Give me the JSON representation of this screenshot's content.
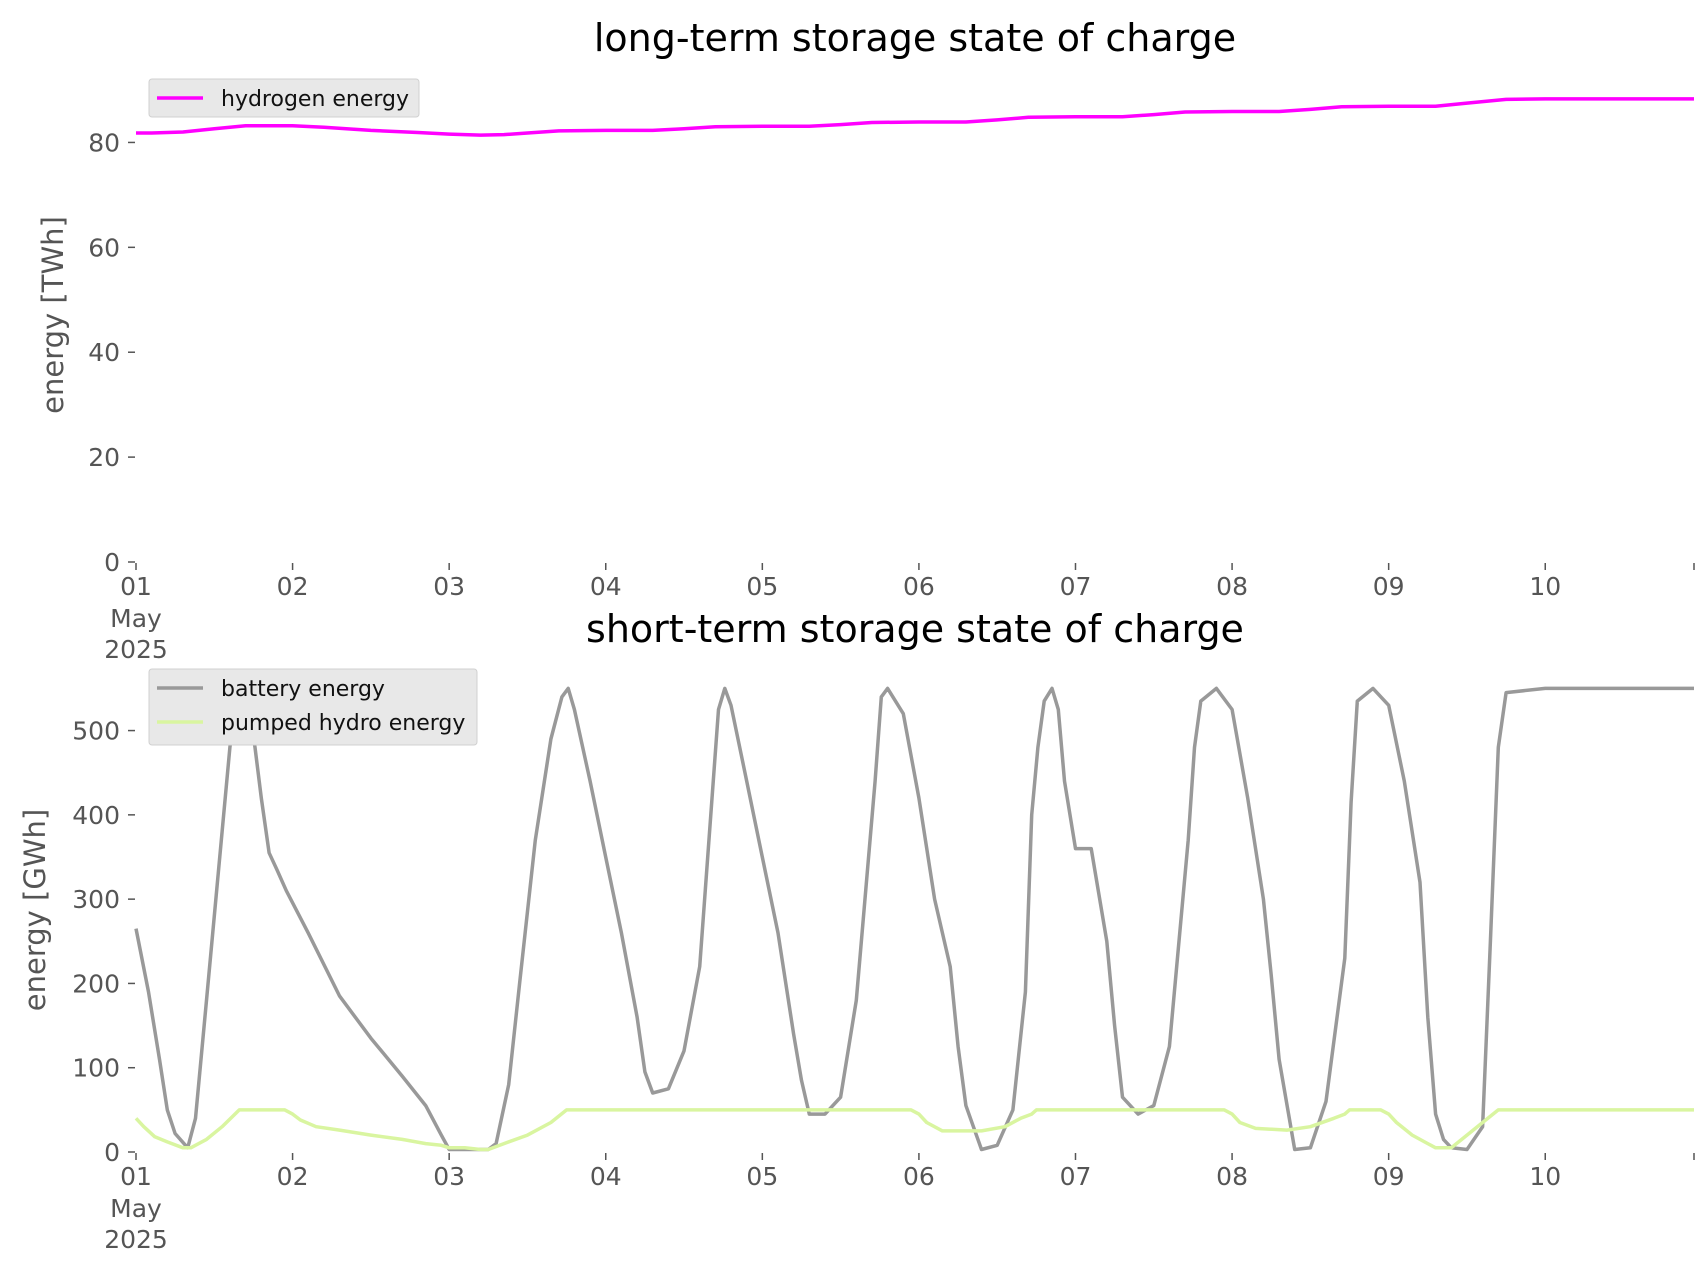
{
  "colors": {
    "hydrogen": "#ff00ff",
    "battery": "#999999",
    "pumped_hydro": "#d9f5a0",
    "legend_bg": "#e8e8e8",
    "tick_text": "#555555"
  },
  "x_ticks": {
    "labels": [
      "01",
      "02",
      "03",
      "04",
      "05",
      "06",
      "07",
      "08",
      "09",
      "10"
    ],
    "month_label": "May",
    "year_label": "2025"
  },
  "chart_data": [
    {
      "type": "line",
      "title": "long-term storage state of charge",
      "ylabel": "energy [TWh]",
      "xlabel": "",
      "x_unit": "day of May 2025",
      "xlim": [
        1,
        10.95
      ],
      "ylim": [
        0,
        90
      ],
      "yticks": [
        0,
        20,
        40,
        60,
        80
      ],
      "grid": false,
      "legend_position": "top-left",
      "series": [
        {
          "name": "hydrogen energy",
          "color": "#ff00ff",
          "x": [
            1.0,
            1.1,
            1.3,
            1.5,
            1.7,
            2.0,
            2.2,
            2.5,
            2.8,
            3.0,
            3.2,
            3.35,
            3.5,
            3.7,
            4.0,
            4.3,
            4.5,
            4.7,
            5.0,
            5.3,
            5.5,
            5.7,
            6.0,
            6.3,
            6.5,
            6.7,
            7.0,
            7.3,
            7.5,
            7.7,
            8.0,
            8.3,
            8.5,
            8.7,
            9.0,
            9.3,
            9.5,
            9.75,
            10.0,
            10.5,
            10.95
          ],
          "y": [
            81.8,
            81.8,
            82.0,
            82.6,
            83.2,
            83.2,
            82.9,
            82.3,
            81.9,
            81.6,
            81.4,
            81.5,
            81.8,
            82.2,
            82.3,
            82.3,
            82.6,
            83.0,
            83.1,
            83.1,
            83.4,
            83.8,
            83.9,
            83.9,
            84.3,
            84.8,
            84.9,
            84.9,
            85.3,
            85.8,
            85.9,
            85.9,
            86.3,
            86.8,
            86.9,
            86.9,
            87.5,
            88.2,
            88.3,
            88.3,
            88.3
          ]
        }
      ]
    },
    {
      "type": "line",
      "title": "short-term storage state of charge",
      "ylabel": "energy [GWh]",
      "xlabel": "",
      "x_unit": "day of May 2025",
      "xlim": [
        1,
        10.95
      ],
      "ylim": [
        0,
        560
      ],
      "yticks": [
        0,
        100,
        200,
        300,
        400,
        500
      ],
      "grid": false,
      "legend_position": "top-left",
      "series": [
        {
          "name": "battery energy",
          "color": "#999999",
          "x": [
            1.0,
            1.08,
            1.15,
            1.2,
            1.25,
            1.33,
            1.38,
            1.45,
            1.55,
            1.6,
            1.64,
            1.68,
            1.72,
            1.76,
            1.8,
            1.85,
            1.9,
            1.96,
            2.1,
            2.3,
            2.5,
            2.7,
            2.85,
            2.95,
            3.0,
            3.1,
            3.2,
            3.25,
            3.3,
            3.38,
            3.45,
            3.55,
            3.65,
            3.72,
            3.76,
            3.8,
            3.9,
            4.0,
            4.1,
            4.2,
            4.25,
            4.3,
            4.4,
            4.5,
            4.6,
            4.72,
            4.76,
            4.8,
            4.9,
            5.0,
            5.1,
            5.2,
            5.25,
            5.3,
            5.4,
            5.5,
            5.6,
            5.72,
            5.76,
            5.8,
            5.9,
            6.0,
            6.1,
            6.2,
            6.25,
            6.3,
            6.4,
            6.5,
            6.6,
            6.68,
            6.72,
            6.76,
            6.8,
            6.85,
            6.89,
            6.93,
            7.0,
            7.1,
            7.2,
            7.25,
            7.3,
            7.4,
            7.5,
            7.6,
            7.72,
            7.76,
            7.8,
            7.9,
            8.0,
            8.1,
            8.2,
            8.25,
            8.3,
            8.4,
            8.5,
            8.6,
            8.72,
            8.76,
            8.8,
            8.9,
            9.0,
            9.1,
            9.2,
            9.25,
            9.3,
            9.35,
            9.4,
            9.5,
            9.6,
            9.65,
            9.7,
            9.75,
            10.0,
            10.5,
            10.95
          ],
          "y": [
            265,
            190,
            110,
            50,
            22,
            5,
            40,
            180,
            380,
            480,
            540,
            550,
            530,
            480,
            420,
            355,
            335,
            310,
            260,
            185,
            135,
            90,
            55,
            20,
            3,
            3,
            3,
            3,
            10,
            80,
            200,
            370,
            490,
            540,
            550,
            525,
            440,
            350,
            260,
            160,
            95,
            70,
            75,
            120,
            220,
            525,
            550,
            530,
            440,
            350,
            260,
            140,
            85,
            45,
            45,
            65,
            180,
            440,
            540,
            550,
            520,
            420,
            300,
            220,
            125,
            55,
            3,
            8,
            50,
            190,
            400,
            480,
            535,
            550,
            525,
            440,
            360,
            360,
            250,
            150,
            65,
            45,
            55,
            125,
            370,
            480,
            535,
            550,
            525,
            420,
            300,
            210,
            110,
            3,
            5,
            60,
            230,
            415,
            535,
            550,
            530,
            440,
            320,
            160,
            45,
            15,
            5,
            3,
            30,
            250,
            480,
            545,
            550,
            550,
            550
          ]
        },
        {
          "name": "pumped hydro energy",
          "color": "#d9f5a0",
          "x": [
            1.0,
            1.05,
            1.12,
            1.2,
            1.3,
            1.35,
            1.45,
            1.55,
            1.66,
            1.75,
            1.95,
            2.0,
            2.05,
            2.15,
            2.3,
            2.5,
            2.7,
            2.85,
            2.95,
            3.0,
            3.1,
            3.2,
            3.25,
            3.35,
            3.5,
            3.65,
            3.75,
            3.8,
            4.0,
            4.5,
            5.0,
            5.5,
            5.95,
            6.0,
            6.05,
            6.15,
            6.3,
            6.4,
            6.55,
            6.65,
            6.72,
            6.75,
            7.0,
            7.5,
            7.95,
            8.0,
            8.05,
            8.15,
            8.35,
            8.5,
            8.65,
            8.72,
            8.75,
            8.95,
            9.0,
            9.05,
            9.15,
            9.25,
            9.3,
            9.4,
            9.5,
            9.6,
            9.7,
            10.0,
            10.5,
            10.95
          ],
          "y": [
            40,
            30,
            18,
            12,
            5,
            5,
            15,
            30,
            50,
            50,
            50,
            45,
            38,
            30,
            26,
            20,
            15,
            10,
            8,
            5,
            5,
            3,
            3,
            10,
            20,
            35,
            50,
            50,
            50,
            50,
            50,
            50,
            50,
            45,
            35,
            25,
            25,
            25,
            30,
            40,
            45,
            50,
            50,
            50,
            50,
            45,
            35,
            28,
            26,
            30,
            40,
            45,
            50,
            50,
            45,
            35,
            20,
            10,
            5,
            5,
            20,
            35,
            50,
            50,
            50,
            50
          ]
        }
      ]
    }
  ]
}
